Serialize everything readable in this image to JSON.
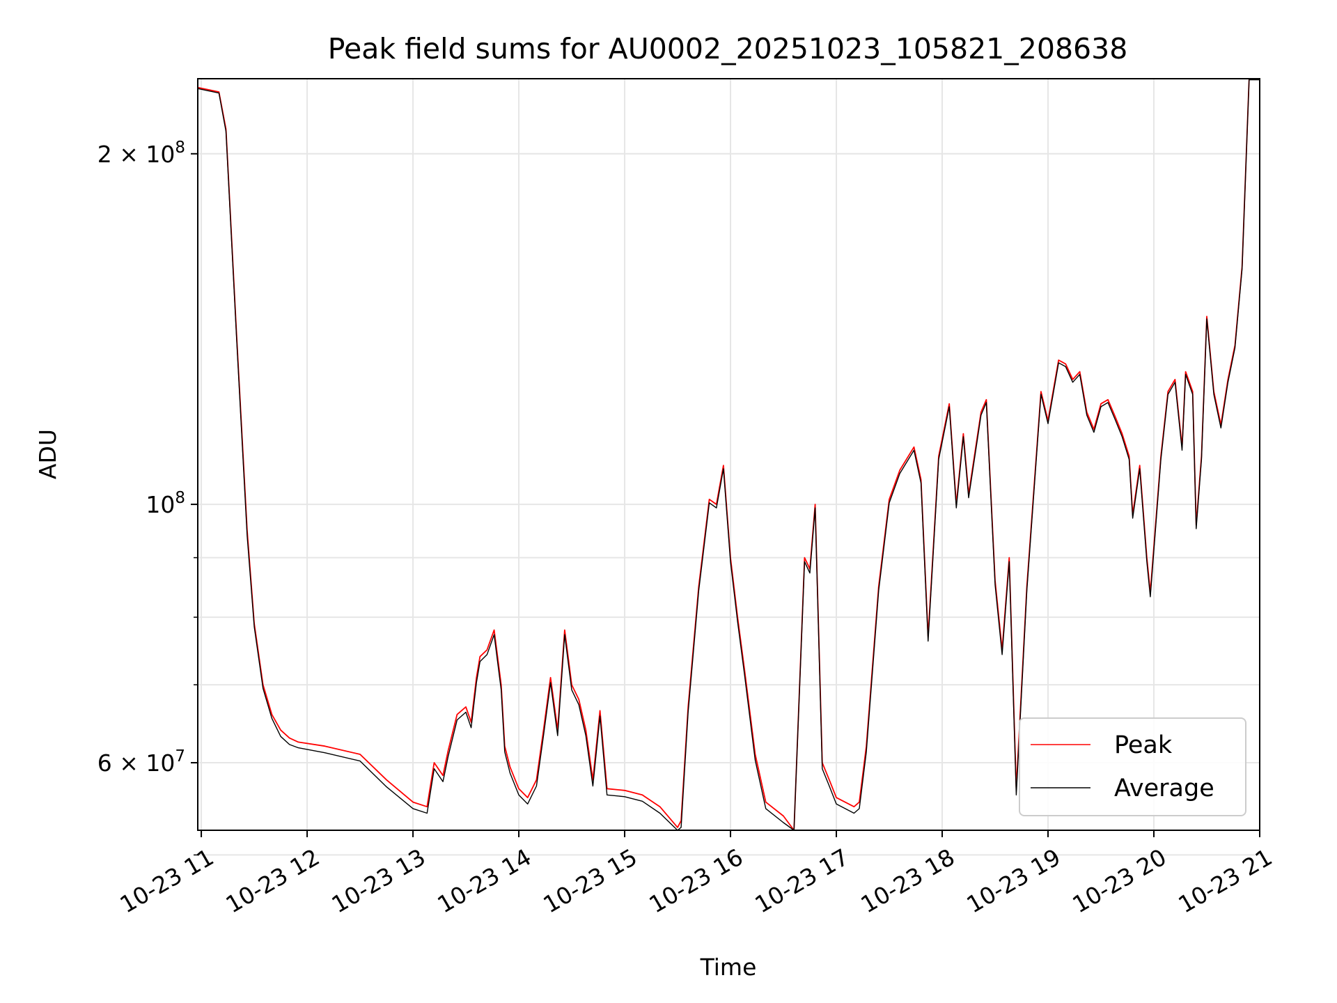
{
  "chart_data": {
    "type": "line",
    "title": "Peak field sums for AU0002_20251023_105821_208638",
    "xlabel": "Time",
    "ylabel": "ADU",
    "y_scale": "log",
    "grid": true,
    "legend_position": "lower-right",
    "xlim": [
      "2025-10-23 10:58",
      "2025-10-23 21:00"
    ],
    "ylim": [
      52500000,
      232000000
    ],
    "x_ticks": [
      {
        "value": "2025-10-23 11:00",
        "label": "10-23 11"
      },
      {
        "value": "2025-10-23 12:00",
        "label": "10-23 12"
      },
      {
        "value": "2025-10-23 13:00",
        "label": "10-23 13"
      },
      {
        "value": "2025-10-23 14:00",
        "label": "10-23 14"
      },
      {
        "value": "2025-10-23 15:00",
        "label": "10-23 15"
      },
      {
        "value": "2025-10-23 16:00",
        "label": "10-23 16"
      },
      {
        "value": "2025-10-23 17:00",
        "label": "10-23 17"
      },
      {
        "value": "2025-10-23 18:00",
        "label": "10-23 18"
      },
      {
        "value": "2025-10-23 19:00",
        "label": "10-23 19"
      },
      {
        "value": "2025-10-23 20:00",
        "label": "10-23 20"
      },
      {
        "value": "2025-10-23 21:00",
        "label": "10-23 21"
      }
    ],
    "y_major_ticks": [
      {
        "value": 60000000,
        "mantissa": "6",
        "exponent": "7"
      },
      {
        "value": 100000000,
        "mantissa": "",
        "exponent": "8"
      },
      {
        "value": 200000000,
        "mantissa": "2",
        "exponent": "8"
      }
    ],
    "y_minor_ticks": [
      50000000,
      70000000,
      80000000,
      90000000
    ],
    "series": [
      {
        "name": "Peak",
        "color": "#ff0000",
        "x": [
          "2025-10-23 10:58",
          "2025-10-23 11:10",
          "2025-10-23 11:14",
          "2025-10-23 11:20",
          "2025-10-23 11:26",
          "2025-10-23 11:30",
          "2025-10-23 11:35",
          "2025-10-23 11:40",
          "2025-10-23 11:45",
          "2025-10-23 11:50",
          "2025-10-23 11:55",
          "2025-10-23 12:10",
          "2025-10-23 12:30",
          "2025-10-23 12:45",
          "2025-10-23 13:00",
          "2025-10-23 13:08",
          "2025-10-23 13:12",
          "2025-10-23 13:17",
          "2025-10-23 13:20",
          "2025-10-23 13:25",
          "2025-10-23 13:30",
          "2025-10-23 13:33",
          "2025-10-23 13:36",
          "2025-10-23 13:38",
          "2025-10-23 13:42",
          "2025-10-23 13:46",
          "2025-10-23 13:50",
          "2025-10-23 13:52",
          "2025-10-23 13:55",
          "2025-10-23 14:00",
          "2025-10-23 14:05",
          "2025-10-23 14:10",
          "2025-10-23 14:14",
          "2025-10-23 14:18",
          "2025-10-23 14:22",
          "2025-10-23 14:26",
          "2025-10-23 14:30",
          "2025-10-23 14:34",
          "2025-10-23 14:38",
          "2025-10-23 14:42",
          "2025-10-23 14:46",
          "2025-10-23 14:50",
          "2025-10-23 15:00",
          "2025-10-23 15:10",
          "2025-10-23 15:20",
          "2025-10-23 15:30",
          "2025-10-23 15:32",
          "2025-10-23 15:36",
          "2025-10-23 15:42",
          "2025-10-23 15:48",
          "2025-10-23 15:52",
          "2025-10-23 15:56",
          "2025-10-23 16:00",
          "2025-10-23 16:04",
          "2025-10-23 16:08",
          "2025-10-23 16:14",
          "2025-10-23 16:20",
          "2025-10-23 16:30",
          "2025-10-23 16:36",
          "2025-10-23 16:42",
          "2025-10-23 16:45",
          "2025-10-23 16:48",
          "2025-10-23 16:52",
          "2025-10-23 16:56",
          "2025-10-23 17:00",
          "2025-10-23 17:10",
          "2025-10-23 17:13",
          "2025-10-23 17:17",
          "2025-10-23 17:24",
          "2025-10-23 17:30",
          "2025-10-23 17:36",
          "2025-10-23 17:44",
          "2025-10-23 17:48",
          "2025-10-23 17:52",
          "2025-10-23 17:58",
          "2025-10-23 18:04",
          "2025-10-23 18:08",
          "2025-10-23 18:12",
          "2025-10-23 18:15",
          "2025-10-23 18:22",
          "2025-10-23 18:25",
          "2025-10-23 18:30",
          "2025-10-23 18:34",
          "2025-10-23 18:38",
          "2025-10-23 18:42",
          "2025-10-23 18:48",
          "2025-10-23 18:52",
          "2025-10-23 18:56",
          "2025-10-23 19:00",
          "2025-10-23 19:06",
          "2025-10-23 19:10",
          "2025-10-23 19:14",
          "2025-10-23 19:18",
          "2025-10-23 19:22",
          "2025-10-23 19:26",
          "2025-10-23 19:30",
          "2025-10-23 19:34",
          "2025-10-23 19:38",
          "2025-10-23 19:42",
          "2025-10-23 19:46",
          "2025-10-23 19:48",
          "2025-10-23 19:52",
          "2025-10-23 19:56",
          "2025-10-23 19:58",
          "2025-10-23 20:04",
          "2025-10-23 20:08",
          "2025-10-23 20:12",
          "2025-10-23 20:16",
          "2025-10-23 20:18",
          "2025-10-23 20:22",
          "2025-10-23 20:24",
          "2025-10-23 20:27",
          "2025-10-23 20:30",
          "2025-10-23 20:34",
          "2025-10-23 20:38",
          "2025-10-23 20:42",
          "2025-10-23 20:46",
          "2025-10-23 20:50",
          "2025-10-23 20:54",
          "2025-10-23 21:00"
        ],
        "y": [
          228000000,
          226000000,
          210000000,
          140000000,
          95000000,
          79000000,
          70000000,
          66000000,
          64000000,
          63000000,
          62500000,
          62000000,
          61000000,
          58000000,
          55500000,
          55000000,
          60000000,
          58500000,
          61500000,
          66000000,
          67000000,
          65000000,
          71000000,
          74000000,
          75000000,
          78000000,
          70000000,
          62000000,
          59500000,
          57000000,
          56000000,
          58000000,
          64000000,
          71000000,
          64000000,
          78000000,
          70000000,
          68000000,
          64000000,
          58000000,
          66500000,
          57000000,
          56800000,
          56300000,
          55000000,
          52800000,
          53500000,
          67000000,
          85000000,
          101000000,
          100000000,
          108000000,
          90000000,
          80000000,
          72000000,
          61000000,
          55500000,
          54000000,
          52500000,
          90000000,
          88000000,
          100000000,
          60000000,
          58000000,
          56000000,
          55000000,
          55500000,
          62000000,
          85000000,
          101000000,
          107000000,
          112000000,
          105000000,
          77000000,
          110000000,
          122000000,
          100000000,
          115000000,
          102000000,
          120000000,
          123000000,
          86000000,
          75000000,
          90000000,
          57000000,
          85000000,
          103000000,
          125000000,
          118000000,
          133000000,
          132000000,
          128000000,
          130000000,
          120000000,
          116000000,
          122000000,
          123000000,
          119000000,
          115000000,
          110000000,
          98000000,
          108000000,
          90000000,
          84000000,
          110000000,
          125000000,
          128000000,
          112000000,
          130000000,
          125000000,
          96000000,
          110000000,
          145000000,
          125000000,
          117000000,
          128000000,
          137000000,
          160000000,
          232000000,
          232000000
        ]
      },
      {
        "name": "Average",
        "color": "#000000",
        "x": [
          "2025-10-23 10:58",
          "2025-10-23 11:10",
          "2025-10-23 11:14",
          "2025-10-23 11:20",
          "2025-10-23 11:26",
          "2025-10-23 11:30",
          "2025-10-23 11:35",
          "2025-10-23 11:40",
          "2025-10-23 11:45",
          "2025-10-23 11:50",
          "2025-10-23 11:55",
          "2025-10-23 12:10",
          "2025-10-23 12:30",
          "2025-10-23 12:45",
          "2025-10-23 13:00",
          "2025-10-23 13:08",
          "2025-10-23 13:12",
          "2025-10-23 13:17",
          "2025-10-23 13:20",
          "2025-10-23 13:25",
          "2025-10-23 13:30",
          "2025-10-23 13:33",
          "2025-10-23 13:36",
          "2025-10-23 13:38",
          "2025-10-23 13:42",
          "2025-10-23 13:46",
          "2025-10-23 13:50",
          "2025-10-23 13:52",
          "2025-10-23 13:55",
          "2025-10-23 14:00",
          "2025-10-23 14:05",
          "2025-10-23 14:10",
          "2025-10-23 14:14",
          "2025-10-23 14:18",
          "2025-10-23 14:22",
          "2025-10-23 14:26",
          "2025-10-23 14:30",
          "2025-10-23 14:34",
          "2025-10-23 14:38",
          "2025-10-23 14:42",
          "2025-10-23 14:46",
          "2025-10-23 14:50",
          "2025-10-23 15:00",
          "2025-10-23 15:10",
          "2025-10-23 15:20",
          "2025-10-23 15:30",
          "2025-10-23 15:32",
          "2025-10-23 15:36",
          "2025-10-23 15:42",
          "2025-10-23 15:48",
          "2025-10-23 15:52",
          "2025-10-23 15:56",
          "2025-10-23 16:00",
          "2025-10-23 16:04",
          "2025-10-23 16:08",
          "2025-10-23 16:14",
          "2025-10-23 16:20",
          "2025-10-23 16:30",
          "2025-10-23 16:36",
          "2025-10-23 16:42",
          "2025-10-23 16:45",
          "2025-10-23 16:48",
          "2025-10-23 16:52",
          "2025-10-23 16:56",
          "2025-10-23 17:00",
          "2025-10-23 17:10",
          "2025-10-23 17:13",
          "2025-10-23 17:17",
          "2025-10-23 17:24",
          "2025-10-23 17:30",
          "2025-10-23 17:36",
          "2025-10-23 17:44",
          "2025-10-23 17:48",
          "2025-10-23 17:52",
          "2025-10-23 17:58",
          "2025-10-23 18:04",
          "2025-10-23 18:08",
          "2025-10-23 18:12",
          "2025-10-23 18:15",
          "2025-10-23 18:22",
          "2025-10-23 18:25",
          "2025-10-23 18:30",
          "2025-10-23 18:34",
          "2025-10-23 18:38",
          "2025-10-23 18:42",
          "2025-10-23 18:48",
          "2025-10-23 18:52",
          "2025-10-23 18:56",
          "2025-10-23 19:00",
          "2025-10-23 19:06",
          "2025-10-23 19:10",
          "2025-10-23 19:14",
          "2025-10-23 19:18",
          "2025-10-23 19:22",
          "2025-10-23 19:26",
          "2025-10-23 19:30",
          "2025-10-23 19:34",
          "2025-10-23 19:38",
          "2025-10-23 19:42",
          "2025-10-23 19:46",
          "2025-10-23 19:48",
          "2025-10-23 19:52",
          "2025-10-23 19:56",
          "2025-10-23 19:58",
          "2025-10-23 20:04",
          "2025-10-23 20:08",
          "2025-10-23 20:12",
          "2025-10-23 20:16",
          "2025-10-23 20:18",
          "2025-10-23 20:22",
          "2025-10-23 20:24",
          "2025-10-23 20:27",
          "2025-10-23 20:30",
          "2025-10-23 20:34",
          "2025-10-23 20:38",
          "2025-10-23 20:42",
          "2025-10-23 20:46",
          "2025-10-23 20:50",
          "2025-10-23 20:54",
          "2025-10-23 21:00"
        ],
        "y": [
          227500000,
          225500000,
          209000000,
          139000000,
          94000000,
          78500000,
          69500000,
          65500000,
          63200000,
          62200000,
          61800000,
          61200000,
          60200000,
          57200000,
          54800000,
          54300000,
          59300000,
          57800000,
          60800000,
          65300000,
          66300000,
          64300000,
          70300000,
          73300000,
          74300000,
          77300000,
          69300000,
          61300000,
          58800000,
          56300000,
          55300000,
          57300000,
          63300000,
          70300000,
          63300000,
          77300000,
          69300000,
          67300000,
          63300000,
          57300000,
          65800000,
          56300000,
          56100000,
          55600000,
          54300000,
          52100000,
          52800000,
          66300000,
          84300000,
          100300000,
          99300000,
          107300000,
          89300000,
          79300000,
          71300000,
          60300000,
          54800000,
          53300000,
          51800000,
          89300000,
          87300000,
          99300000,
          59300000,
          57300000,
          55300000,
          54300000,
          54800000,
          61300000,
          84300000,
          100300000,
          106300000,
          111300000,
          104300000,
          76300000,
          109300000,
          121300000,
          99300000,
          114300000,
          101300000,
          119300000,
          122300000,
          85300000,
          74300000,
          89300000,
          56300000,
          84300000,
          102300000,
          124300000,
          117300000,
          132300000,
          131300000,
          127300000,
          129300000,
          119300000,
          115300000,
          121300000,
          122300000,
          118300000,
          114300000,
          109300000,
          97300000,
          107300000,
          89300000,
          83300000,
          109300000,
          124300000,
          127300000,
          111300000,
          129300000,
          124300000,
          95300000,
          109300000,
          144300000,
          124300000,
          116300000,
          127300000,
          136300000,
          159300000,
          231500000,
          231500000
        ]
      }
    ]
  }
}
